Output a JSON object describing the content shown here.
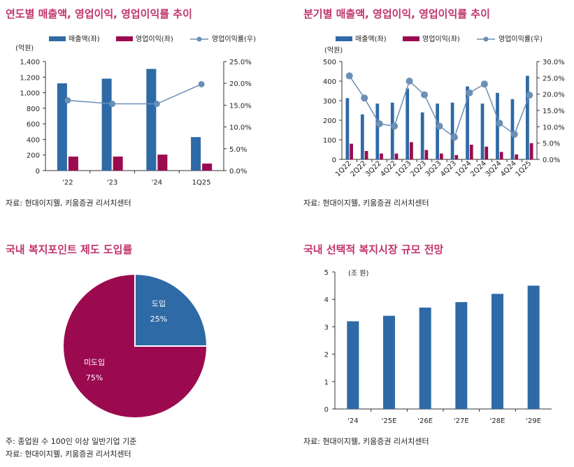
{
  "colors": {
    "title": "#c0336b",
    "revenue": "#2e6aa6",
    "op_income": "#9b0a4f",
    "op_margin": "#6b8fb5"
  },
  "panels": {
    "annual": {
      "title": "연도별 매출액, 영업이익, 영업이익률 추이",
      "source": "자료: 현대이지웰, 키움증권 리서치센터"
    },
    "quarterly": {
      "title": "분기별 매출액, 영업이익, 영업이익률 추이",
      "source": "자료: 현대이지웰, 키움증권 리서치센터"
    },
    "pie": {
      "title": "국내 복지포인트 제도 도입률",
      "note": "주: 종업원 수 100인 이상 일반기업 기준",
      "source": "자료: 현대이지웰, 키움증권 리서치센터"
    },
    "market": {
      "title": "국내 선택적 복지시장 규모 전망",
      "source": "자료: 현대이지웰, 키움증권 리서치센터"
    }
  },
  "chart_data": [
    {
      "type": "bar",
      "categories": [
        "'22",
        "'23",
        "'24",
        "1Q25"
      ],
      "series": [
        {
          "name": "매출액(좌)",
          "kind": "bar",
          "axis": "left",
          "values": [
            1120,
            1180,
            1305,
            430
          ]
        },
        {
          "name": "영업이익(좌)",
          "kind": "bar",
          "axis": "left",
          "values": [
            180,
            180,
            205,
            90
          ]
        },
        {
          "name": "영업이익률(우)",
          "kind": "line",
          "axis": "right",
          "values": [
            16.1,
            15.3,
            15.3,
            19.8
          ]
        }
      ],
      "ylabel": "(억원)",
      "ylim": [
        0,
        1400
      ],
      "yticks": [
        "0",
        "200",
        "400",
        "600",
        "800",
        "1,000",
        "1,200",
        "1,400"
      ],
      "y2lim": [
        0,
        25
      ],
      "y2ticks": [
        "0.0%",
        "5.0%",
        "10.0%",
        "15.0%",
        "20.0%",
        "25.0%"
      ],
      "legend": "top"
    },
    {
      "type": "bar",
      "categories": [
        "1Q22",
        "2Q22",
        "3Q22",
        "4Q22",
        "1Q23",
        "2Q23",
        "3Q23",
        "4Q23",
        "1Q24",
        "2Q24",
        "3Q24",
        "4Q24",
        "1Q25"
      ],
      "series": [
        {
          "name": "매출액(좌)",
          "kind": "bar",
          "axis": "left",
          "values": [
            313,
            230,
            285,
            290,
            362,
            240,
            285,
            290,
            373,
            285,
            340,
            308,
            427
          ]
        },
        {
          "name": "영업이익(좌)",
          "kind": "bar",
          "axis": "left",
          "values": [
            80,
            43,
            30,
            30,
            88,
            48,
            30,
            22,
            75,
            65,
            38,
            25,
            83
          ]
        },
        {
          "name": "영업이익률(우)",
          "kind": "line",
          "axis": "right",
          "values": [
            25.6,
            18.8,
            10.9,
            10.2,
            24.0,
            19.8,
            10.2,
            6.8,
            20.4,
            23.1,
            11.1,
            7.7,
            19.7
          ]
        }
      ],
      "ylabel": "(억원)",
      "ylim": [
        0,
        500
      ],
      "yticks": [
        "0",
        "100",
        "200",
        "300",
        "400",
        "500"
      ],
      "y2lim": [
        0,
        30
      ],
      "y2ticks": [
        "0.0%",
        "5.0%",
        "10.0%",
        "15.0%",
        "20.0%",
        "25.0%",
        "30.0%"
      ],
      "legend": "top"
    },
    {
      "type": "pie",
      "slices": [
        {
          "label": "도입",
          "value": 25,
          "display": "25%",
          "color": "#2e6aa6"
        },
        {
          "label": "미도입",
          "value": 75,
          "display": "75%",
          "color": "#9b0a4f"
        }
      ]
    },
    {
      "type": "bar",
      "categories": [
        "'24",
        "'25E",
        "'26E",
        "'27E",
        "'28E",
        "'29E"
      ],
      "values": [
        3.2,
        3.4,
        3.7,
        3.9,
        4.2,
        4.5
      ],
      "ylabel": "(조 원)",
      "ylim": [
        0,
        5
      ],
      "yticks": [
        "0",
        "1",
        "2",
        "3",
        "4",
        "5"
      ]
    }
  ]
}
